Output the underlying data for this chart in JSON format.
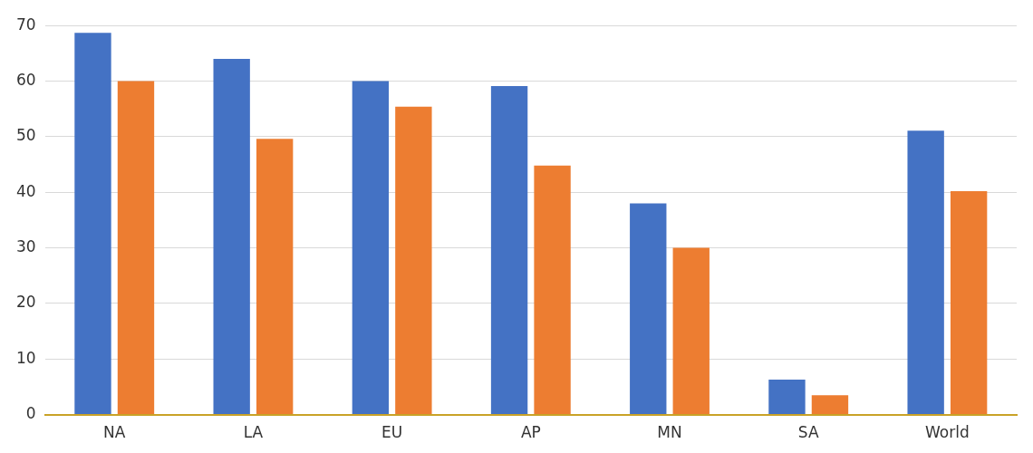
{
  "chart_data": {
    "type": "bar",
    "categories": [
      "NA",
      "LA",
      "EU",
      "AP",
      "MN",
      "SA",
      "World"
    ],
    "series": [
      {
        "color": "#4472c4",
        "values": [
          68.7,
          64,
          60,
          59.1,
          38,
          6.3,
          51.1
        ]
      },
      {
        "color": "#ed7d31",
        "values": [
          60,
          49.6,
          55.4,
          44.8,
          30,
          3.5,
          40.2
        ]
      }
    ],
    "ylim": [
      0,
      70
    ],
    "yticks": [
      0,
      10,
      20,
      30,
      40,
      50,
      60,
      70
    ],
    "grid": "y",
    "legend": false
  }
}
